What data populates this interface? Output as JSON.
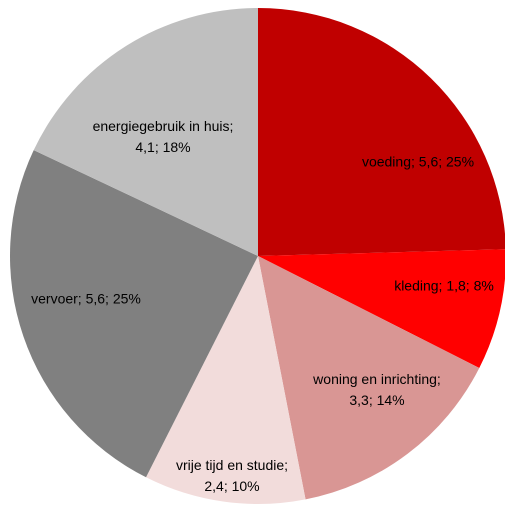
{
  "chart_data": {
    "type": "pie",
    "values": [
      5.6,
      1.8,
      3.3,
      2.4,
      5.6,
      4.1
    ],
    "value_labels": [
      "voeding; 5,6; 25%",
      "kleding; 1,8; 8%",
      "woning en inrichting; 3,3; 14%",
      "vrije tijd en studie; 2,4; 10%",
      "vervoer; 5,6; 25%",
      "energiegebruik in huis; 4,1; 18%"
    ],
    "colors": [
      "#c00000",
      "#ff0000",
      "#d99694",
      "#f2dcdb",
      "#808080",
      "#bfbfbf"
    ]
  }
}
